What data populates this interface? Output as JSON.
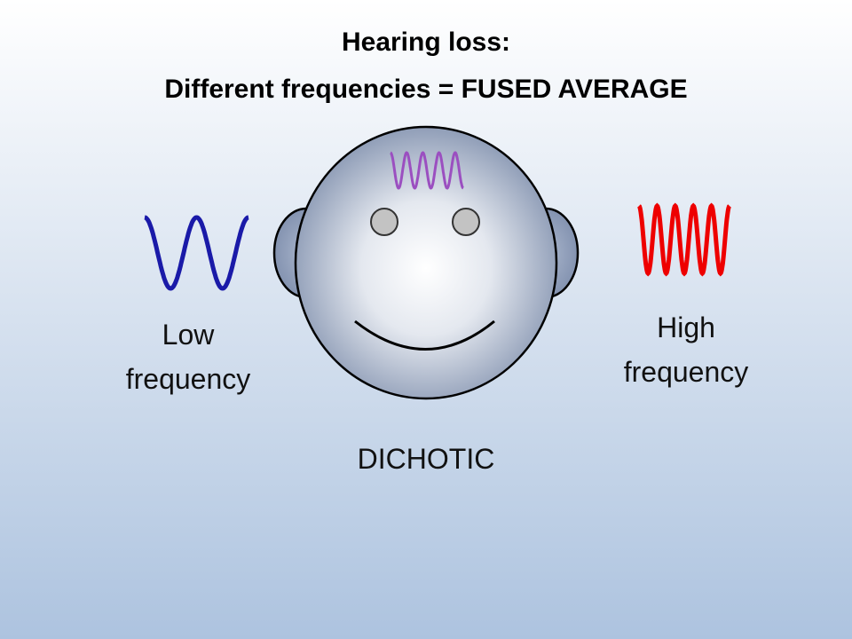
{
  "title": {
    "line1": "Hearing loss:",
    "line2": "Different frequencies = FUSED AVERAGE"
  },
  "left_label": {
    "line1": "Low",
    "line2": "frequency"
  },
  "right_label": {
    "line1": "High",
    "line2": "frequency"
  },
  "bottom_label": "DICHOTIC"
}
